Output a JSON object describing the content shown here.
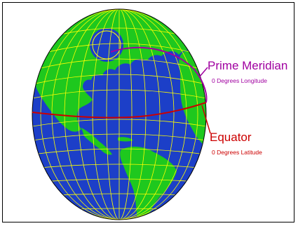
{
  "labels": {
    "prime_meridian": "Prime Meridian",
    "prime_meridian_sub": "0 Degrees Longitude",
    "equator": "Equator",
    "equator_sub": "0 Degrees Latitude"
  },
  "colors": {
    "ocean": "#1c3fc8",
    "land": "#1ec81e",
    "grid": "#ffff00",
    "prime_meridian": "#a000a0",
    "equator": "#cc0000"
  }
}
